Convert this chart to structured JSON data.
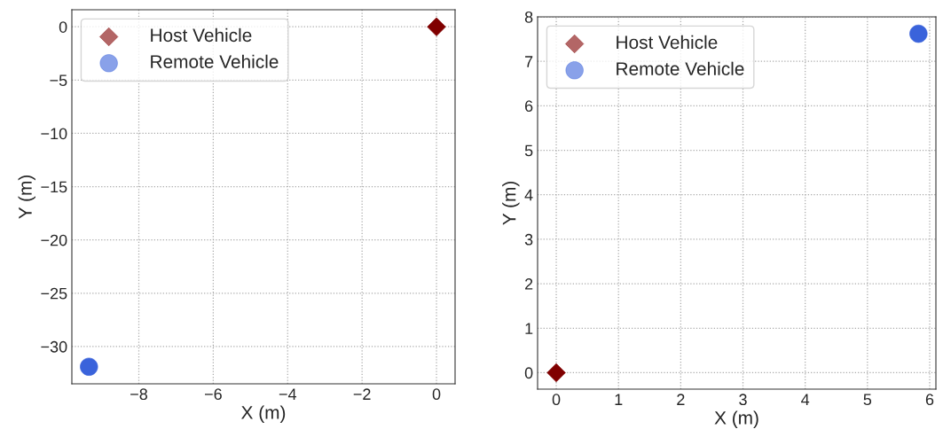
{
  "chart_data": [
    {
      "type": "scatter",
      "xlabel": "X (m)",
      "ylabel": "Y (m)",
      "xlim": [
        -9.8,
        0.5
      ],
      "ylim": [
        -33.5,
        1.6
      ],
      "xticks": [
        {
          "value": -8,
          "label": "−8"
        },
        {
          "value": -6,
          "label": "−6"
        },
        {
          "value": -4,
          "label": "−4"
        },
        {
          "value": -2,
          "label": "−2"
        },
        0
      ],
      "yticks": [
        0,
        {
          "value": -5,
          "label": "−5"
        },
        {
          "value": -10,
          "label": "−10"
        },
        {
          "value": -15,
          "label": "−15"
        },
        {
          "value": -20,
          "label": "−20"
        },
        {
          "value": -25,
          "label": "−25"
        },
        {
          "value": -30,
          "label": "−30"
        }
      ],
      "grid": true,
      "legend": "top left",
      "series": [
        {
          "name": "Host Vehicle",
          "color": "#800000",
          "marker": "diamond",
          "x": [
            0
          ],
          "values": [
            0
          ]
        },
        {
          "name": "Remote Vehicle",
          "color": "#3a63db",
          "marker": "circle",
          "x": [
            -9.34
          ],
          "values": [
            -31.9
          ]
        }
      ]
    },
    {
      "type": "scatter",
      "xlabel": "X (m)",
      "ylabel": "Y (m)",
      "xlim": [
        -0.3,
        6.1
      ],
      "ylim": [
        -0.37,
        8
      ],
      "xticks": [
        0,
        1,
        2,
        3,
        4,
        5,
        6
      ],
      "yticks": [
        0,
        1,
        2,
        3,
        4,
        5,
        6,
        7,
        8
      ],
      "grid": true,
      "legend": "top left",
      "series": [
        {
          "name": "Host Vehicle",
          "color": "#800000",
          "marker": "diamond",
          "x": [
            0
          ],
          "values": [
            0
          ]
        },
        {
          "name": "Remote Vehicle",
          "color": "#3a63db",
          "marker": "circle",
          "x": [
            5.82
          ],
          "values": [
            7.62
          ]
        }
      ]
    }
  ]
}
